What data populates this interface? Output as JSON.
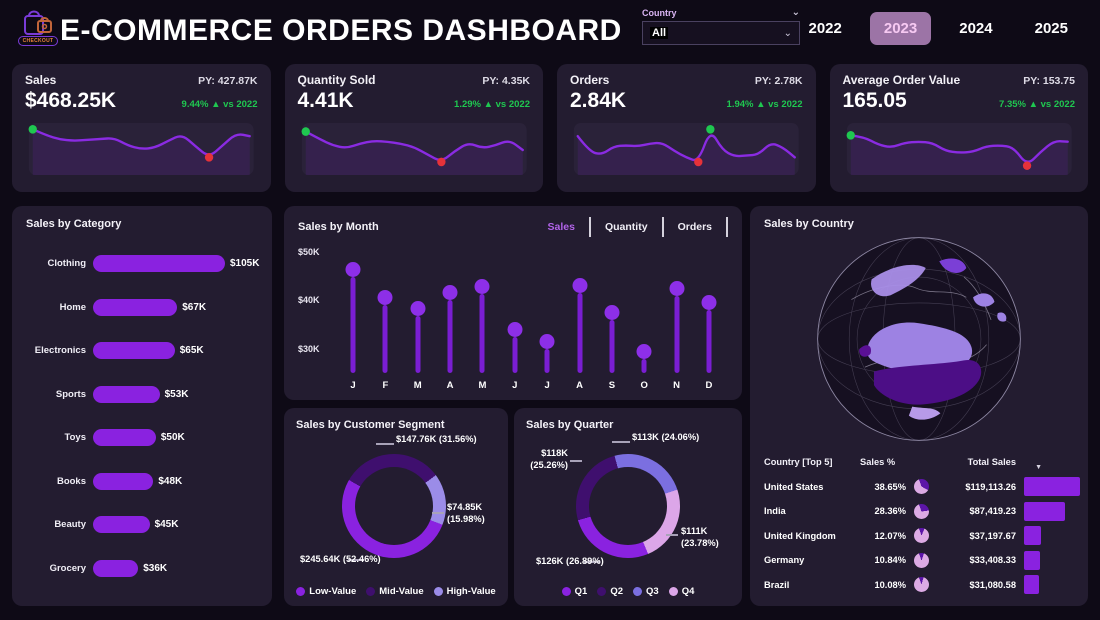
{
  "colors": {
    "page_bg": "#0e0a16",
    "card_bg": "#231c30",
    "accent_purple": "#8a22e0",
    "dark_purple": "#3f0f6e",
    "lavender": "#9b8ce8",
    "pink": "#dca6e8",
    "green": "#1fc750",
    "red": "#e63239",
    "year_selected_bg": "#9c74a6"
  },
  "header": {
    "logo_label": "CHECKOUT",
    "title": "E-COMMERCE ORDERS DASHBOARD",
    "country_filter": {
      "label": "Country",
      "value": "All"
    },
    "years": [
      {
        "label": "2022",
        "selected": false
      },
      {
        "label": "2023",
        "selected": true
      },
      {
        "label": "2024",
        "selected": false
      },
      {
        "label": "2025",
        "selected": false
      }
    ]
  },
  "kpi_cards": [
    {
      "title": "Sales",
      "value": "$468.25K",
      "py_label": "PY: 427.87K",
      "delta_label": "9.44% ▲ vs 2022",
      "spark": [
        95,
        82,
        73,
        70,
        72,
        74,
        76,
        60,
        52,
        55,
        70,
        84,
        58,
        34,
        60,
        86,
        80
      ]
    },
    {
      "title": "Quantity Sold",
      "value": "4.41K",
      "py_label": "PY: 4.35K",
      "delta_label": "1.29% ▲ vs 2022",
      "spark": [
        90,
        74,
        60,
        54,
        64,
        70,
        68,
        64,
        56,
        40,
        24,
        48,
        66,
        54,
        60,
        72,
        50
      ]
    },
    {
      "title": "Orders",
      "value": "2.84K",
      "py_label": "PY: 2.78K",
      "delta_label": "1.94% ▲ vs 2022",
      "spark": [
        80,
        46,
        40,
        58,
        60,
        58,
        64,
        66,
        48,
        34,
        24,
        95,
        50,
        36,
        38,
        40,
        66,
        56,
        34
      ]
    },
    {
      "title": "Average Order Value",
      "value": "165.05",
      "py_label": "PY: 153.75",
      "delta_label": "7.35% ▲ vs 2022",
      "spark": [
        82,
        78,
        62,
        55,
        66,
        68,
        66,
        48,
        44,
        46,
        58,
        60,
        56,
        16,
        46,
        70,
        68
      ]
    }
  ],
  "chart_data": [
    {
      "type": "bar",
      "title": "Sales by Category",
      "orientation": "horizontal",
      "categories": [
        "Clothing",
        "Home",
        "Electronics",
        "Sports",
        "Toys",
        "Books",
        "Beauty",
        "Grocery"
      ],
      "values": [
        105,
        67,
        65,
        53,
        50,
        48,
        45,
        36
      ],
      "value_labels": [
        "$105K",
        "$67K",
        "$65K",
        "$53K",
        "$50K",
        "$48K",
        "$45K",
        "$36K"
      ],
      "xlabel": "",
      "ylabel": "",
      "bar_color": "#8a22e0"
    },
    {
      "type": "lollipop",
      "title": "Sales by Month",
      "tabs": [
        {
          "label": "Sales",
          "active": true
        },
        {
          "label": "Quantity",
          "active": false
        },
        {
          "label": "Orders",
          "active": false
        }
      ],
      "x": [
        "J",
        "F",
        "M",
        "A",
        "M",
        "J",
        "J",
        "A",
        "S",
        "O",
        "N",
        "D"
      ],
      "values": [
        46.5,
        40.7,
        38.5,
        41.7,
        43.0,
        34.0,
        31.7,
        43.2,
        37.5,
        29.5,
        42.5,
        39.7
      ],
      "unit": "K USD",
      "yticks": {
        "labels": [
          "$50K",
          "$40K",
          "$30K"
        ],
        "values": [
          50,
          40,
          30
        ]
      },
      "ylim": [
        25,
        51
      ]
    },
    {
      "type": "donut",
      "title": "Sales by Customer Segment",
      "slices": [
        {
          "name": "Low-Value",
          "value_label": "$245.64K (52.46%)",
          "pct": 52.46,
          "color": "#8a22e0"
        },
        {
          "name": "Mid-Value",
          "value_label": "$147.76K (31.56%)",
          "pct": 31.56,
          "color": "#3f0f6e"
        },
        {
          "name": "High-Value",
          "value_label": "$74.85K (15.98%)",
          "pct": 15.98,
          "color": "#9b8ce8"
        }
      ],
      "callouts": {
        "mid": "$147.76K (31.56%)",
        "high": "$74.85K\n(15.98%)",
        "low": "$245.64K (52.46%)"
      },
      "start_deg": 300,
      "render_order": [
        1,
        2,
        0
      ],
      "legend_position": "bottom"
    },
    {
      "type": "donut",
      "title": "Sales by Quarter",
      "slices": [
        {
          "name": "Q1",
          "value_label": "$126K (26.89%)",
          "pct": 26.89,
          "color": "#8a22e0"
        },
        {
          "name": "Q2",
          "value_label": "$118K (25.26%)",
          "pct": 25.26,
          "color": "#3f0f6e"
        },
        {
          "name": "Q3",
          "value_label": "$113K (24.06%)",
          "pct": 24.06,
          "color": "#7b6fe0"
        },
        {
          "name": "Q4",
          "value_label": "$111K (23.78%)",
          "pct": 23.78,
          "color": "#dca6e8"
        }
      ],
      "callouts": {
        "q3": "$113K (24.06%)",
        "q2": "$118K\n(25.26%)",
        "q4": "$111K\n(23.78%)",
        "q1": "$126K (26.89%)"
      },
      "start_deg": 345,
      "render_order": [
        2,
        3,
        0,
        1
      ],
      "legend_position": "bottom"
    },
    {
      "type": "table",
      "title": "Sales by Country",
      "columns": [
        "Country [Top 5]",
        "Sales %",
        "Total Sales"
      ],
      "rows": [
        [
          "United States",
          "38.65%",
          "$119,113.26"
        ],
        [
          "India",
          "28.36%",
          "$87,419.23"
        ],
        [
          "United Kingdom",
          "12.07%",
          "$37,197.67"
        ],
        [
          "Germany",
          "10.84%",
          "$33,408.33"
        ],
        [
          "Brazil",
          "10.08%",
          "$31,080.58"
        ]
      ],
      "pct_values": [
        38.65,
        28.36,
        12.07,
        10.84,
        10.08
      ],
      "total_values": [
        119113.26,
        87419.23,
        37197.67,
        33408.33,
        31080.58
      ]
    }
  ]
}
